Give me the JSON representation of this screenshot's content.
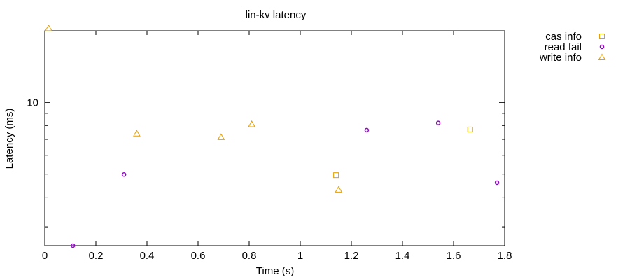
{
  "chart_data": {
    "type": "scatter",
    "title": "lin-kv latency",
    "xlabel": "Time (s)",
    "ylabel": "Latency (ms)",
    "xlim": [
      0,
      1.8
    ],
    "ylim": [
      2.5,
      20
    ],
    "yscale": "log",
    "grid": false,
    "legend_position": "outside-top-right",
    "x_ticks": [
      {
        "value": 0,
        "label": "0"
      },
      {
        "value": 0.2,
        "label": "0.2"
      },
      {
        "value": 0.4,
        "label": "0.4"
      },
      {
        "value": 0.6,
        "label": "0.6"
      },
      {
        "value": 0.8,
        "label": "0.8"
      },
      {
        "value": 1,
        "label": "1"
      },
      {
        "value": 1.2,
        "label": "1.2"
      },
      {
        "value": 1.4,
        "label": "1.4"
      },
      {
        "value": 1.6,
        "label": "1.6"
      },
      {
        "value": 1.8,
        "label": "1.8"
      }
    ],
    "y_ticks": [
      {
        "value": 10,
        "label": "10"
      }
    ],
    "y_minor_ticks": [
      3,
      4,
      5,
      6,
      7,
      8,
      9,
      20
    ],
    "series": [
      {
        "name": "cas info",
        "marker": "square",
        "color": "#e69f00",
        "points": [
          {
            "x": 1.14,
            "y": 4.95
          },
          {
            "x": 1.665,
            "y": 7.7
          }
        ]
      },
      {
        "name": "read fail",
        "marker": "circle",
        "color": "#9400d3",
        "points": [
          {
            "x": 0.11,
            "y": 2.5
          },
          {
            "x": 0.31,
            "y": 4.98
          },
          {
            "x": 1.26,
            "y": 7.65
          },
          {
            "x": 1.54,
            "y": 8.2
          },
          {
            "x": 1.77,
            "y": 4.6
          }
        ]
      },
      {
        "name": "write info",
        "marker": "triangle",
        "color": "#e69f00",
        "points": [
          {
            "x": 0.015,
            "y": 20.5
          },
          {
            "x": 0.36,
            "y": 7.4
          },
          {
            "x": 0.69,
            "y": 7.15
          },
          {
            "x": 0.81,
            "y": 8.1
          },
          {
            "x": 1.15,
            "y": 4.3
          }
        ]
      }
    ]
  }
}
